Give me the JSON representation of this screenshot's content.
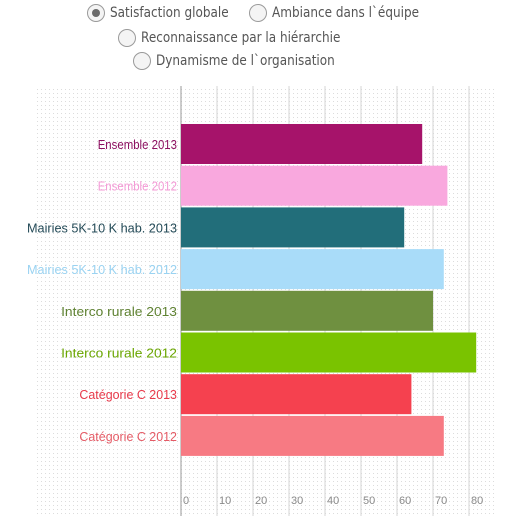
{
  "filters": [
    {
      "label": "Satisfaction globale",
      "checked": true
    },
    {
      "label": "Ambiance dans l`équipe",
      "checked": false
    },
    {
      "label": "Reconnaissance par la hiérarchie",
      "checked": false
    },
    {
      "label": "Dynamisme de l`organisation",
      "checked": false
    }
  ],
  "chart_data": {
    "type": "bar",
    "orientation": "horizontal",
    "categories": [
      "Ensemble 2013",
      "Ensemble 2012",
      "Mairies 5K-10 K hab. 2013",
      "Mairies 5K-10 K hab. 2012",
      "Interco rurale 2013",
      "Interco rurale 2012",
      "Catégorie C 2013",
      "Catégorie C 2012"
    ],
    "values": [
      67,
      74,
      62,
      73,
      70,
      82,
      64,
      73
    ],
    "colors": [
      "#a6136a",
      "#f9a8de",
      "#226e7a",
      "#a9dcf9",
      "#6f9040",
      "#7ac300",
      "#f5414f",
      "#f77a83"
    ],
    "label_colors": [
      "#8c1060",
      "#f49ad6",
      "#234a57",
      "#9ad3f2",
      "#5f8232",
      "#6aa600",
      "#e8394a",
      "#e55b66"
    ],
    "xlim": [
      0,
      80
    ],
    "xticks": [
      0,
      10,
      20,
      30,
      40,
      50,
      60,
      70,
      80
    ],
    "grid": "dotted-background"
  }
}
